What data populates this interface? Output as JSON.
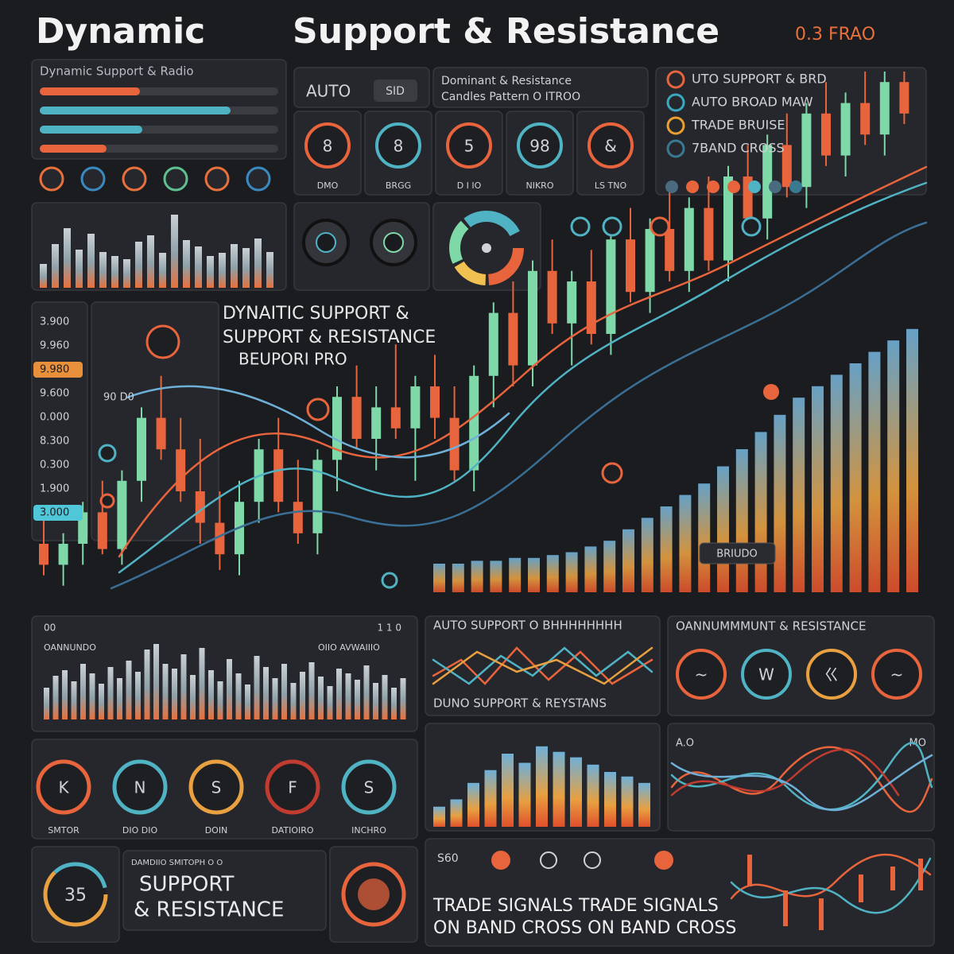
{
  "header": {
    "title_left": "Dynamic",
    "title_right": "Support & Resistance",
    "badge": "0.3 FRAO"
  },
  "top_left_panel": {
    "title": "Dynamic Support & Radio",
    "progress": [
      {
        "color": "#e8643c",
        "value": 42
      },
      {
        "color": "#4fb3c4",
        "value": 80
      },
      {
        "color": "#4fb3c4",
        "value": 43
      },
      {
        "color": "#e8643c",
        "value": 28
      }
    ],
    "bars": [
      30,
      55,
      75,
      48,
      68,
      45,
      40,
      36,
      58,
      66,
      44,
      92,
      60,
      52,
      40,
      44,
      55,
      50,
      62,
      45
    ]
  },
  "auto_panel": {
    "label": "AUTO",
    "badge": "SID"
  },
  "pattern_panel": {
    "line1": "Dominant & Resistance",
    "line2": "Candles Pattern  O ITROO"
  },
  "mode_tiles": [
    {
      "glyph": "8",
      "label": "DMO",
      "color": "#e8643c"
    },
    {
      "glyph": "8",
      "label": "BRGG",
      "color": "#4fb3c4"
    },
    {
      "glyph": "5",
      "label": "D I IO",
      "color": "#e8643c"
    },
    {
      "glyph": "98",
      "label": "NIKRO",
      "color": "#4fb3c4"
    },
    {
      "glyph": "&",
      "label": "LS TNO",
      "color": "#e8643c"
    }
  ],
  "legend": [
    {
      "text": "UTO SUPPORT & BRD",
      "color": "#e8643c"
    },
    {
      "text": "AUTO BROAD MAW",
      "color": "#3aa8c0"
    },
    {
      "text": "TRADE BRUISE",
      "color": "#e8a030"
    },
    {
      "text": "7BAND CROSS",
      "color": "#3a7a90"
    }
  ],
  "main": {
    "overlay_lines": [
      "DYNAITIC SUPPORT &",
      "SUPPORT & RESISTANCE",
      "BEUPORI PRO"
    ],
    "price_labels": [
      {
        "text": "3.900"
      },
      {
        "text": "9.960"
      },
      {
        "text": "9.980",
        "bg": "#e8903c"
      },
      {
        "text": "9.600"
      },
      {
        "text": "0.000"
      },
      {
        "text": "8.300"
      },
      {
        "text": "0.300"
      },
      {
        "text": "1.900"
      },
      {
        "text": "3.000",
        "bg": "#4fc7d8"
      }
    ],
    "side_label": "90 D0",
    "tag": "BRIUDO",
    "candles": [
      [
        10,
        16,
        4,
        6
      ],
      [
        6,
        12,
        2,
        10
      ],
      [
        10,
        18,
        6,
        16
      ],
      [
        16,
        22,
        8,
        9
      ],
      [
        9,
        24,
        6,
        22
      ],
      [
        22,
        36,
        18,
        34
      ],
      [
        34,
        42,
        26,
        28
      ],
      [
        28,
        34,
        18,
        20
      ],
      [
        20,
        30,
        10,
        14
      ],
      [
        14,
        20,
        5,
        8
      ],
      [
        8,
        22,
        4,
        18
      ],
      [
        18,
        30,
        14,
        28
      ],
      [
        28,
        34,
        16,
        18
      ],
      [
        18,
        26,
        10,
        12
      ],
      [
        12,
        28,
        8,
        26
      ],
      [
        26,
        40,
        20,
        38
      ],
      [
        38,
        44,
        28,
        30
      ],
      [
        30,
        40,
        24,
        36
      ],
      [
        36,
        48,
        30,
        32
      ],
      [
        32,
        42,
        22,
        40
      ],
      [
        40,
        46,
        30,
        34
      ],
      [
        34,
        40,
        22,
        24
      ],
      [
        24,
        44,
        20,
        42
      ],
      [
        42,
        56,
        36,
        54
      ],
      [
        54,
        60,
        40,
        44
      ],
      [
        44,
        64,
        40,
        62
      ],
      [
        62,
        68,
        50,
        52
      ],
      [
        52,
        62,
        44,
        60
      ],
      [
        60,
        66,
        48,
        50
      ],
      [
        50,
        70,
        46,
        68
      ],
      [
        68,
        74,
        56,
        58
      ],
      [
        58,
        72,
        54,
        70
      ],
      [
        70,
        78,
        60,
        62
      ],
      [
        62,
        76,
        58,
        74
      ],
      [
        74,
        80,
        62,
        64
      ],
      [
        64,
        82,
        60,
        80
      ],
      [
        80,
        86,
        70,
        72
      ],
      [
        72,
        88,
        68,
        86
      ],
      [
        86,
        92,
        76,
        78
      ],
      [
        78,
        94,
        74,
        92
      ],
      [
        92,
        98,
        82,
        84
      ],
      [
        84,
        96,
        80,
        94
      ],
      [
        94,
        100,
        86,
        88
      ],
      [
        88,
        100,
        84,
        98
      ],
      [
        98,
        100,
        90,
        92
      ]
    ],
    "volume": [
      10,
      10,
      11,
      11,
      12,
      12,
      13,
      14,
      16,
      18,
      22,
      26,
      30,
      34,
      38,
      44,
      50,
      56,
      62,
      68,
      72,
      76,
      80,
      84,
      88,
      92
    ]
  },
  "bars_panel": {
    "left_label": "00",
    "right_label": "1 1 0",
    "tag_left": "OANNUNDO",
    "tag_right": "OIIO AVWAIIIO",
    "values": [
      40,
      55,
      62,
      48,
      70,
      58,
      45,
      66,
      52,
      74,
      60,
      88,
      95,
      70,
      64,
      82,
      56,
      90,
      62,
      48,
      76,
      58,
      44,
      80,
      66,
      52,
      70,
      46,
      60,
      72,
      54,
      42,
      64,
      58,
      50,
      68,
      46,
      56,
      40,
      52
    ]
  },
  "lines_panel": {
    "title": "AUTO SUPPORT O BHHHHHHHH",
    "footer": "DUNO SUPPORT & REYSTANS"
  },
  "circles_panel": {
    "title": "OANNUMMMUNT & RESISTANCE",
    "glyphs": [
      "~",
      "W",
      "ㄍ",
      "~"
    ]
  },
  "signal_circles": [
    {
      "glyph": "K",
      "label": "SMTOR"
    },
    {
      "glyph": "N",
      "label": "DIO DIO"
    },
    {
      "glyph": "S",
      "label": "DOIN"
    },
    {
      "glyph": "F",
      "label": "DATIOIRO"
    },
    {
      "glyph": "S",
      "label": "INCHRO"
    }
  ],
  "dist_panel": {
    "values": [
      22,
      30,
      48,
      62,
      80,
      70,
      88,
      82,
      76,
      68,
      60,
      55,
      48
    ]
  },
  "wave_panel": {
    "label": "A.O",
    "label_right": "MO"
  },
  "bottom": {
    "left_ring": "35",
    "card_title": "DAMDIIO SMITOPH O O",
    "card_line1": "SUPPORT",
    "card_line2": "& RESISTANCE",
    "signals_label": "S60",
    "signals_line1": "TRADE SIGNALS   TRADE SIGNALS",
    "signals_line2": "ON BAND CROSS  ON BAND CROSS"
  }
}
